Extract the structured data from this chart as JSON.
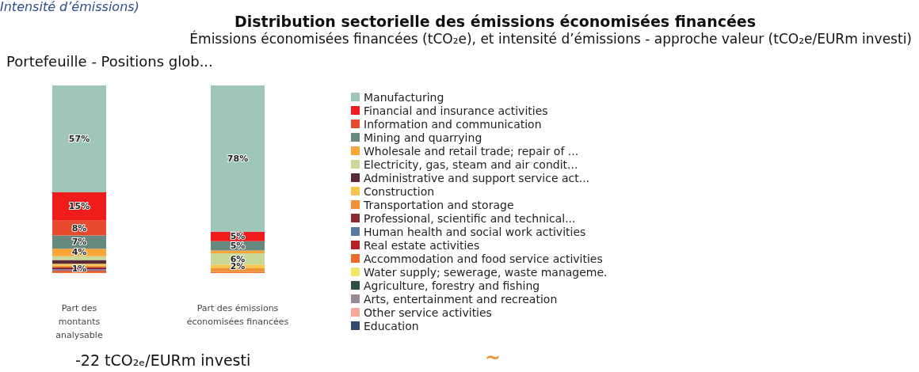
{
  "chart_data": {
    "type": "bar",
    "title": "Distribution sectorielle des émissions économisées financées",
    "subtitle": "Émissions économisées financées (tCO₂e), et intensité d’émissions - approche valeur (tCO₂e/EURm investi)",
    "annotations": [
      "Intensité d’émissions)",
      "Portefeuille - Positions glob...",
      "-22 tCO₂ₑ/EURm investi",
      "~"
    ],
    "categories": [
      "Part des\nmontants\nanalysable",
      "Part des émissions\néconomisées financées"
    ],
    "stacked": true,
    "ylim": [
      0,
      100
    ],
    "legend": "right",
    "series": [
      {
        "name": "Education",
        "color": "#354a6a",
        "values": [
          null,
          null
        ]
      },
      {
        "name": "Other service activities",
        "color": "#f8a898",
        "values": [
          null,
          null
        ]
      },
      {
        "name": "Arts, entertainment and recreation",
        "color": "#9a8898",
        "values": [
          null,
          null
        ]
      },
      {
        "name": "Agriculture, forestry and fishing",
        "color": "#2f4f45",
        "values": [
          null,
          null
        ]
      },
      {
        "name": "Water supply; sewerage, waste manageme.",
        "color": "#f3e46a",
        "values": [
          null,
          null
        ]
      },
      {
        "name": "Accommodation and food service activities",
        "color": "#ec6c2b",
        "values": [
          1,
          0.5
        ]
      },
      {
        "name": "Real estate activities",
        "color": "#b82226",
        "values": [
          0.5,
          null
        ]
      },
      {
        "name": "Human health and social work activities",
        "color": "#5a7aa0",
        "values": [
          0.5,
          null
        ]
      },
      {
        "name": "Professional, scientific and technical...",
        "color": "#8b2a33",
        "values": [
          1,
          null
        ],
        "value_labels": [
          "1%",
          null
        ]
      },
      {
        "name": "Transportation and storage",
        "color": "#f0913a",
        "values": [
          1,
          2
        ]
      },
      {
        "name": "Construction",
        "color": "#f7c651",
        "values": [
          1,
          2
        ],
        "value_labels": [
          null,
          "2%"
        ]
      },
      {
        "name": "Administrative and support service act...",
        "color": "#5a2a35",
        "values": [
          2,
          null
        ]
      },
      {
        "name": "Electricity, gas, steam and air condit...",
        "color": "#c9d99a",
        "values": [
          2,
          6
        ],
        "value_labels": [
          null,
          "6%"
        ]
      },
      {
        "name": "Wholesale and retail trade; repair of ...",
        "color": "#f7a637",
        "values": [
          4,
          1.5
        ],
        "value_labels": [
          "4%",
          null
        ]
      },
      {
        "name": "Mining and quarrying",
        "color": "#668a7e",
        "values": [
          7,
          5
        ],
        "value_labels": [
          "7%",
          "5%"
        ]
      },
      {
        "name": "Information and communication",
        "color": "#e84a2e",
        "values": [
          8,
          null
        ],
        "value_labels": [
          "8%",
          null
        ]
      },
      {
        "name": "Financial and insurance activities",
        "color": "#ee1c1c",
        "values": [
          15,
          5
        ],
        "value_labels": [
          "15%",
          "5%"
        ]
      },
      {
        "name": "Manufacturing",
        "color": "#9fc7b8",
        "values": [
          57,
          78
        ],
        "value_labels": [
          "57%",
          "78%"
        ]
      }
    ]
  }
}
